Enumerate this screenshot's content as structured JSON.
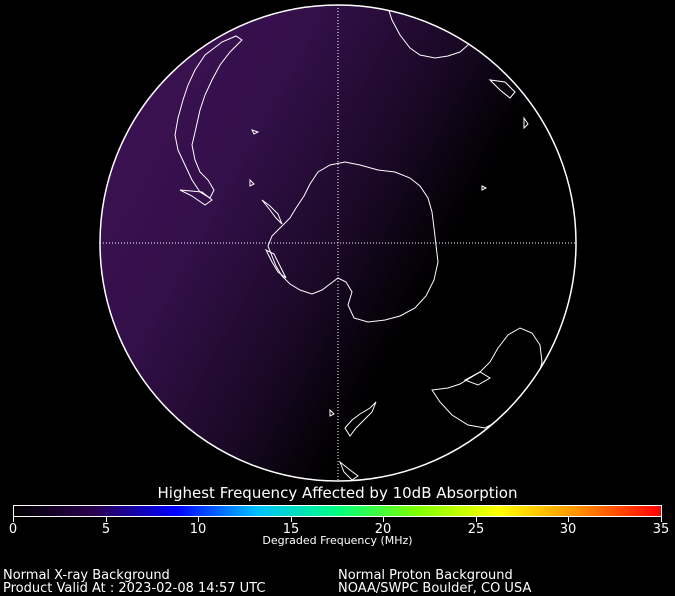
{
  "map": {
    "projection": "south polar orthographic",
    "ocean_color": "#000000",
    "dayside_tint": "#3a0f4e",
    "outline_color": "#ffffff",
    "gridline_style": "dotted"
  },
  "colorbar": {
    "title": "Highest Frequency Affected by 10dB Absorption",
    "xlabel": "Degraded Frequency (MHz)",
    "range": [
      0,
      35
    ],
    "ticks": [
      "0",
      "5",
      "10",
      "15",
      "20",
      "25",
      "30",
      "35"
    ],
    "colors": [
      "#000000",
      "#2a0050",
      "#0000ff",
      "#00bfff",
      "#00ff7f",
      "#7fff00",
      "#ffff00",
      "#ff8c00",
      "#ff0000"
    ]
  },
  "footer": {
    "xray_status": "Normal X-ray Background",
    "valid_label": "Product Valid At : 2023-02-08 14:57 UTC",
    "proton_status": "Normal Proton Background",
    "source": "NOAA/SWPC Boulder, CO USA"
  }
}
